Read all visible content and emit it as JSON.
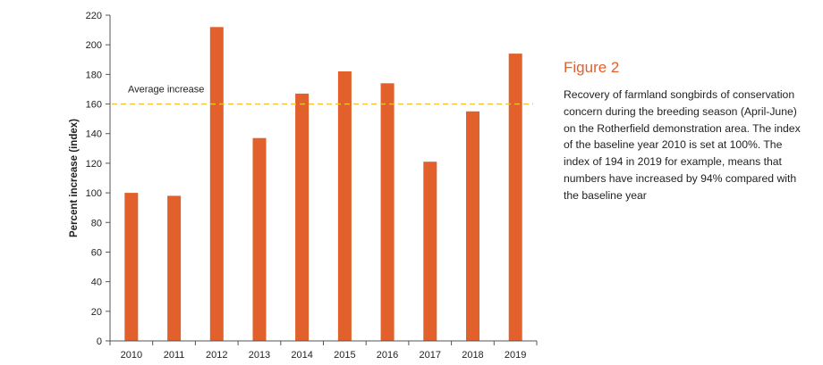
{
  "figure": {
    "title": "Figure 2",
    "caption": "Recovery of farmland songbirds of conservation concern during the breeding season (April-June) on the Rotherfield demonstration area. The index of the baseline year 2010 is set at 100%. The index of 194 in 2019 for example, means that numbers have increased by 94% compared with the baseline year"
  },
  "chart_data": {
    "type": "bar",
    "categories": [
      "2010",
      "2011",
      "2012",
      "2013",
      "2014",
      "2015",
      "2016",
      "2017",
      "2018",
      "2019"
    ],
    "values": [
      100,
      98,
      212,
      137,
      167,
      182,
      174,
      121,
      155,
      194
    ],
    "title": "",
    "xlabel": "",
    "ylabel": "Percent increase (index)",
    "ylim": [
      0,
      220
    ],
    "yticks": [
      0,
      20,
      40,
      60,
      80,
      100,
      120,
      140,
      160,
      180,
      200,
      220
    ],
    "grid": false,
    "bar_color": "#e2602b",
    "reference_line": {
      "label": "Average increase",
      "value": 160,
      "color": "#f2c12e",
      "style": "dashed"
    }
  }
}
